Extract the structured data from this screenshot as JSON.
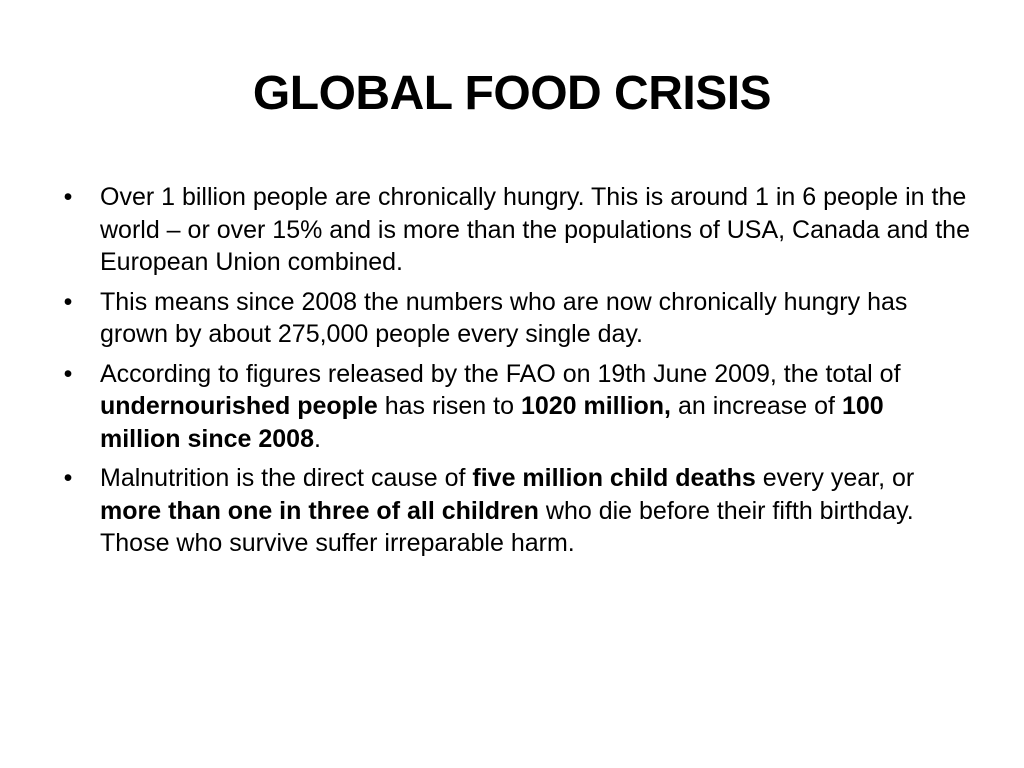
{
  "slide": {
    "title": "GLOBAL FOOD CRISIS",
    "bullet_char": "•",
    "bullets": [
      [
        {
          "text": "Over 1 billion people are chronically hungry. This is around 1 in 6 people in the world – or over 15% and is more than the populations of USA, Canada and the European Union combined.",
          "bold": false
        }
      ],
      [
        {
          "text": "This means since 2008 the numbers who are now chronically hungry has grown by about 275,000 people every single day.",
          "bold": false
        }
      ],
      [
        {
          "text": "According to figures released by the FAO on 19th June 2009, the total of ",
          "bold": false
        },
        {
          "text": "undernourished people",
          "bold": true
        },
        {
          "text": " has risen to ",
          "bold": false
        },
        {
          "text": "1020 million,",
          "bold": true
        },
        {
          "text": " an increase of ",
          "bold": false
        },
        {
          "text": "100 million since 2008",
          "bold": true
        },
        {
          "text": ".",
          "bold": false
        }
      ],
      [
        {
          "text": "Malnutrition is the direct cause of ",
          "bold": false
        },
        {
          "text": "five million child deaths",
          "bold": true
        },
        {
          "text": " every year, or ",
          "bold": false
        },
        {
          "text": "more than one in three of all children",
          "bold": true
        },
        {
          "text": " who die before their fifth birthday. Those who survive suffer irreparable harm.",
          "bold": false
        }
      ]
    ]
  }
}
